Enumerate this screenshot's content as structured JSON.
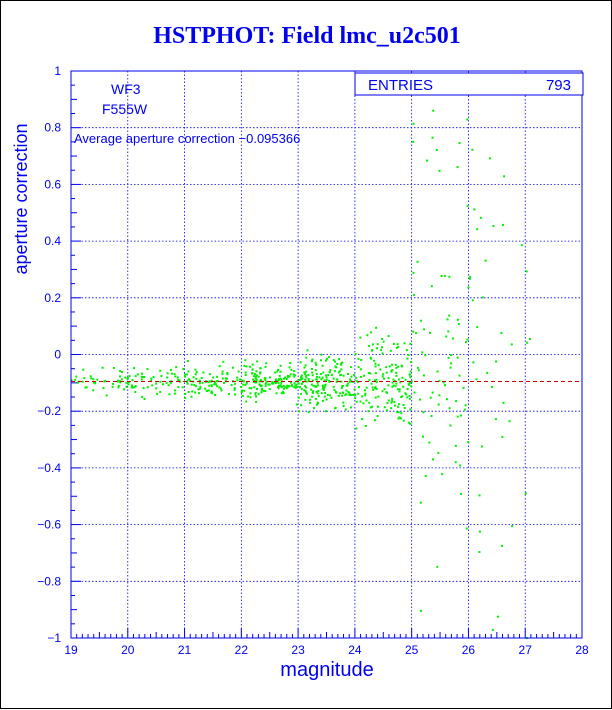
{
  "title": "HSTPHOT: Field lmc_u2c501",
  "chart_data": {
    "type": "scatter",
    "title": "HSTPHOT: Field lmc_u2c501",
    "xlabel": "magnitude",
    "ylabel": "aperture correction",
    "xlim": [
      19,
      28
    ],
    "ylim": [
      -1,
      1
    ],
    "xticks": [
      19,
      20,
      21,
      22,
      23,
      24,
      25,
      26,
      27,
      28
    ],
    "yticks": [
      -1,
      -0.8,
      -0.6,
      -0.4,
      -0.2,
      0,
      0.2,
      0.4,
      0.6,
      0.8,
      1
    ],
    "xtick_labels": [
      "19",
      "20",
      "21",
      "22",
      "23",
      "24",
      "25",
      "26",
      "27",
      "28"
    ],
    "ytick_labels": [
      "−1",
      "−0.8",
      "−0.6",
      "−0.4",
      "−0.2",
      "0",
      "0.2",
      "0.4",
      "0.6",
      "0.8",
      "1"
    ],
    "grid": true,
    "annotations": {
      "camera": "WF3",
      "filter": "F555W",
      "average_text": "Average aperture correction −0.095366"
    },
    "stats": {
      "label": "ENTRIES",
      "value": "793"
    },
    "average": -0.095366,
    "point_count": 793,
    "colors": {
      "points": "#00ee00",
      "grid": "#0000ee",
      "axes": "#0000ee",
      "average_line": "#cc0000",
      "title": "#0000ee"
    }
  }
}
